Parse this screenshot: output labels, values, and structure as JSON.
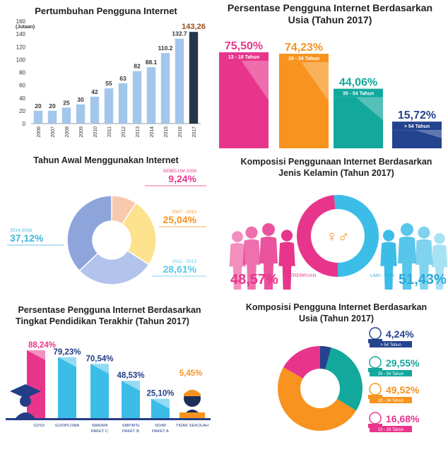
{
  "colors": {
    "light_blue": "#a3c6ec",
    "dark_bar": "#26364a",
    "highlight_text": "#9a4d1c",
    "pink": "#e8358c",
    "orange": "#f7931e",
    "teal": "#12a89c",
    "navy": "#23438f",
    "sky": "#3bbde8",
    "donut_peach": "#f9c9ae",
    "donut_yellow": "#fde28e",
    "donut_lightblue": "#b2c4ec",
    "donut_blue": "#8ea5dc"
  },
  "chart_data": [
    {
      "id": "growth",
      "type": "bar",
      "title": "Pertumbuhan Pengguna Internet",
      "ylabel": "(Jutaan)",
      "ylim": [
        0,
        160
      ],
      "yticks": [
        "0",
        "20",
        "40",
        "60",
        "80",
        "100",
        "120",
        "140",
        "160"
      ],
      "categories": [
        "2006",
        "2007",
        "2008",
        "2009",
        "2010",
        "2011",
        "2012",
        "2013",
        "2014",
        "2015",
        "2016",
        "2017"
      ],
      "values": [
        20,
        20,
        25,
        30,
        42,
        55,
        63,
        82,
        88.1,
        110.2,
        132.7,
        143.26
      ],
      "labels": [
        "20",
        "20",
        "25",
        "30",
        "42",
        "55",
        "63",
        "82",
        "88.1",
        "110.2",
        "132.7",
        "143,26"
      ]
    },
    {
      "id": "age_pct",
      "type": "bar",
      "title_line1": "Persentase Pengguna Internet Berdasarkan",
      "title_line2": "Usia (Tahun 2017)",
      "categories": [
        "13 - 18 Tahun",
        "19 - 34 Tahun",
        "35 - 54 Tahun",
        "> 54 Tahun"
      ],
      "values": [
        75.5,
        74.23,
        44.06,
        15.72
      ],
      "labels": [
        "75,50%",
        "74,23%",
        "44,06%",
        "15,72%"
      ]
    },
    {
      "id": "start_year",
      "type": "pie",
      "title": "Tahun Awal Menggunakan Internet",
      "categories": [
        "SEBELUM 2006",
        "2007 - 2010",
        "2011 - 2013",
        "2014-2016"
      ],
      "values": [
        9.24,
        25.04,
        28.61,
        37.12
      ],
      "labels": [
        "9,24%",
        "25,04%",
        "28,61%",
        "37,12%"
      ]
    },
    {
      "id": "gender",
      "type": "pie",
      "title_line1": "Komposisi Penggunaan Internet Berdasarkan",
      "title_line2": "Jenis Kelamin (Tahun 2017)",
      "categories": [
        "PEREMPUAN",
        "LAKI - LAKI"
      ],
      "values": [
        48.57,
        51.43
      ],
      "labels": [
        "48,57%",
        "51,43%"
      ],
      "center_symbol": "♀♂"
    },
    {
      "id": "education",
      "type": "bar",
      "title_line1": "Persentase Pengguna Internet Berdasarkan",
      "title_line2": "Tingkat Pendidikan Terakhir (Tahun 2017)",
      "categories": [
        "S2/S3",
        "S1/DIPLOMA",
        "SMA/MA PAKET C",
        "SMP/MTs PAKET B",
        "SD/MI PAKET A",
        "TIDAK SEKOLAH"
      ],
      "category_lines": [
        [
          "S2/S3"
        ],
        [
          "S1/DIPLOMA"
        ],
        [
          "SMA/MA",
          "PAKET C"
        ],
        [
          "SMP/MTs",
          "PAKET B"
        ],
        [
          "SD/MI",
          "PAKET A"
        ],
        [
          "TIDAK SEKOLAH"
        ]
      ],
      "values": [
        88.24,
        79.23,
        70.54,
        48.53,
        25.1,
        5.45
      ],
      "labels": [
        "88,24%",
        "79,23%",
        "70,54%",
        "48,53%",
        "25,10%",
        "5,45%"
      ]
    },
    {
      "id": "age_comp",
      "type": "pie",
      "title_line1": "Komposisi Pengguna Internet Berdasarkan",
      "title_line2": "Usia (Tahun 2017)",
      "categories": [
        "> 54 Tahun",
        "35 - 54 Tahun",
        "19 - 34 Tahun",
        "13 - 18 Tahun"
      ],
      "values": [
        4.24,
        29.55,
        49.52,
        16.68
      ],
      "labels": [
        "4,24%",
        "29,55%",
        "49,52%",
        "16,68%"
      ]
    }
  ]
}
